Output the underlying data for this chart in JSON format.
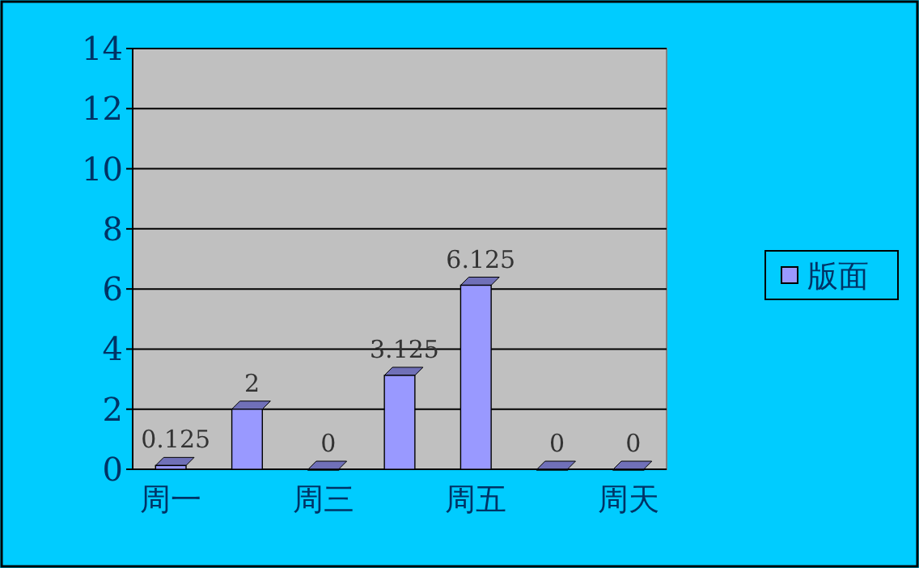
{
  "chart_data": {
    "type": "bar",
    "categories": [
      "周一",
      null,
      "周三",
      null,
      "周五",
      null,
      "周天"
    ],
    "series": [
      {
        "name": "版面",
        "color": "#9999ff",
        "values": [
          0.125,
          2,
          0,
          3.125,
          6.125,
          0,
          0
        ]
      }
    ],
    "ylim": [
      0,
      14
    ],
    "yticks": [
      0,
      2,
      4,
      6,
      8,
      10,
      12,
      14
    ],
    "grid": "y",
    "legend": "right",
    "data_labels": true
  }
}
